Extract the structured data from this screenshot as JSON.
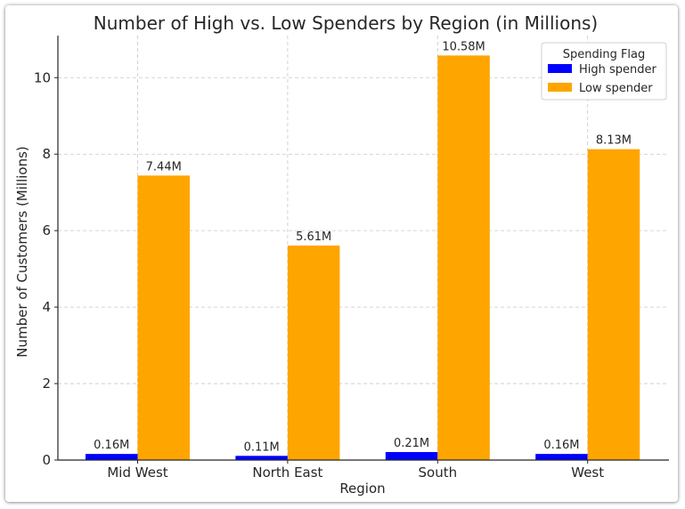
{
  "chart_data": {
    "type": "bar",
    "title": "Number of High vs. Low Spenders by Region (in Millions)",
    "xlabel": "Region",
    "ylabel": "Number of Customers (Millions)",
    "categories": [
      "Mid West",
      "North East",
      "South",
      "West"
    ],
    "ylim": [
      0,
      11.1
    ],
    "yticks": [
      0,
      2,
      4,
      6,
      8,
      10
    ],
    "grid": true,
    "legend": {
      "title": "Spending Flag",
      "position": "top-right"
    },
    "series": [
      {
        "name": "High spender",
        "color": "#0000ff",
        "values": [
          0.16,
          0.11,
          0.21,
          0.16
        ],
        "labels": [
          "0.16M",
          "0.11M",
          "0.21M",
          "0.16M"
        ]
      },
      {
        "name": "Low spender",
        "color": "#ffa500",
        "values": [
          7.44,
          5.61,
          10.58,
          8.13
        ],
        "labels": [
          "7.44M",
          "5.61M",
          "10.58M",
          "8.13M"
        ]
      }
    ]
  }
}
